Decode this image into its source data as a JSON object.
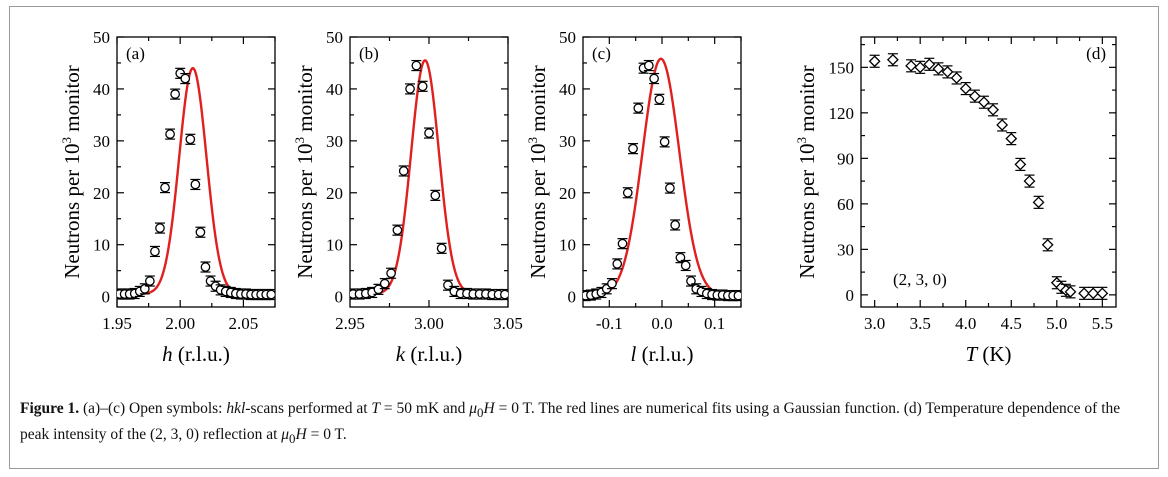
{
  "figure": {
    "ylabel_prefix": "Neutrons per 10",
    "ylabel_sup": "3",
    "ylabel_suffix": " monitor"
  },
  "caption": {
    "figure_label": "Figure 1.",
    "part1": " (a)–(c) Open symbols: ",
    "hkl": "hkl",
    "part2": "-scans performed at ",
    "T_sym": "T",
    "part3": " = 50 mK and ",
    "mu": "μ",
    "sub0": "0",
    "H_sym": "H",
    "part4": " = 0 T. The red lines are numerical fits using a Gaussian function. (d) Temperature dependence of the peak intensity of the (2, 3, 0) reflection at ",
    "mu2": "μ",
    "sub0b": "0",
    "H_sym2": "H",
    "part5": " = 0 T."
  },
  "colors": {
    "fit_line": "#e0201f",
    "marker": "#000000",
    "axis": "#000000"
  },
  "chart_data": [
    {
      "type": "scatter",
      "panel": "(a)",
      "xlabel_var": "h",
      "xlabel_unit": " (r.l.u.)",
      "xlim": [
        1.95,
        2.075
      ],
      "ylim": [
        -2,
        50
      ],
      "xticks": [
        1.95,
        2.0,
        2.05
      ],
      "xtick_labels": [
        "1.95",
        "2.00",
        "2.05"
      ],
      "yticks": [
        0,
        10,
        20,
        30,
        40,
        50
      ],
      "ytick_labels": [
        "0",
        "10",
        "20",
        "30",
        "40",
        "50"
      ],
      "series": [
        {
          "marker": "circle",
          "x": [
            1.952,
            1.956,
            1.96,
            1.964,
            1.968,
            1.972,
            1.976,
            1.98,
            1.984,
            1.988,
            1.992,
            1.996,
            2.0,
            2.004,
            2.008,
            2.012,
            2.016,
            2.02,
            2.024,
            2.028,
            2.032,
            2.036,
            2.04,
            2.044,
            2.048,
            2.052,
            2.056,
            2.06,
            2.064,
            2.068,
            2.072
          ],
          "y": [
            0.5,
            0.5,
            0.5,
            0.6,
            1.0,
            1.5,
            3.0,
            8.7,
            13.2,
            21.0,
            31.3,
            39.0,
            43.0,
            42.0,
            30.3,
            21.6,
            12.4,
            5.7,
            3.0,
            2.0,
            1.3,
            1.0,
            0.8,
            0.6,
            0.5,
            0.5,
            0.4,
            0.4,
            0.4,
            0.4,
            0.4
          ]
        }
      ],
      "fit": {
        "type": "gaussian",
        "amplitude": 43.5,
        "center": 2.01,
        "sigma": 0.0108,
        "offset": 0.5
      }
    },
    {
      "type": "scatter",
      "panel": "(b)",
      "xlabel_var": "k",
      "xlabel_unit": " (r.l.u.)",
      "xlim": [
        2.95,
        3.05
      ],
      "ylim": [
        -2,
        50
      ],
      "xticks": [
        2.95,
        3.0,
        3.05
      ],
      "xtick_labels": [
        "2.95",
        "3.00",
        "3.05"
      ],
      "yticks": [
        0,
        10,
        20,
        30,
        40,
        50
      ],
      "ytick_labels": [
        "0",
        "10",
        "20",
        "30",
        "40",
        "50"
      ],
      "series": [
        {
          "marker": "circle",
          "x": [
            2.952,
            2.956,
            2.96,
            2.964,
            2.968,
            2.972,
            2.976,
            2.98,
            2.984,
            2.988,
            2.992,
            2.996,
            3.0,
            3.004,
            3.008,
            3.012,
            3.016,
            3.02,
            3.024,
            3.028,
            3.032,
            3.036,
            3.04,
            3.044,
            3.048
          ],
          "y": [
            0.5,
            0.5,
            0.6,
            0.8,
            1.4,
            2.5,
            4.5,
            12.8,
            24.2,
            40.0,
            44.5,
            40.5,
            31.5,
            19.5,
            9.3,
            2.2,
            1.0,
            0.6,
            0.6,
            0.5,
            0.5,
            0.5,
            0.4,
            0.4,
            0.4
          ]
        }
      ],
      "fit": {
        "type": "gaussian",
        "amplitude": 45.0,
        "center": 2.9975,
        "sigma": 0.0088,
        "offset": 0.5
      }
    },
    {
      "type": "scatter",
      "panel": "(c)",
      "xlabel_var": "l",
      "xlabel_unit": " (r.l.u.)",
      "xlim": [
        -0.15,
        0.15
      ],
      "ylim": [
        -2,
        50
      ],
      "xticks": [
        -0.1,
        0.0,
        0.1
      ],
      "xtick_labels": [
        "-0.1",
        "0.0",
        "0.1"
      ],
      "yticks": [
        0,
        10,
        20,
        30,
        40,
        50
      ],
      "ytick_labels": [
        "0",
        "10",
        "20",
        "30",
        "40",
        "50"
      ],
      "series": [
        {
          "marker": "circle",
          "x": [
            -0.145,
            -0.135,
            -0.125,
            -0.115,
            -0.105,
            -0.095,
            -0.085,
            -0.075,
            -0.065,
            -0.055,
            -0.045,
            -0.035,
            -0.025,
            -0.015,
            -0.005,
            0.005,
            0.015,
            0.025,
            0.035,
            0.045,
            0.055,
            0.065,
            0.075,
            0.085,
            0.095,
            0.105,
            0.115,
            0.125,
            0.135,
            0.145
          ],
          "y": [
            0.2,
            0.3,
            0.5,
            0.8,
            1.5,
            2.5,
            6.3,
            10.2,
            20.0,
            28.5,
            36.3,
            44.0,
            44.5,
            42.0,
            38.0,
            29.8,
            20.9,
            13.8,
            7.5,
            6.0,
            3.0,
            1.5,
            1.0,
            0.6,
            0.4,
            0.3,
            0.3,
            0.2,
            0.2,
            0.2
          ]
        }
      ],
      "fit": {
        "type": "gaussian",
        "amplitude": 45.5,
        "center": -0.002,
        "sigma": 0.035,
        "offset": 0.3
      }
    },
    {
      "type": "scatter",
      "panel": "(d)",
      "xlabel_var": "T",
      "xlabel_unit": " (K)",
      "annotation": "(2, 3, 0)",
      "xlim": [
        2.85,
        5.65
      ],
      "ylim": [
        -8,
        170
      ],
      "xticks": [
        3.0,
        3.5,
        4.0,
        4.5,
        5.0,
        5.5
      ],
      "xtick_labels": [
        "3.0",
        "3.5",
        "4.0",
        "4.5",
        "5.0",
        "5.5"
      ],
      "yticks": [
        0,
        30,
        60,
        90,
        120,
        150
      ],
      "ytick_labels": [
        "0",
        "30",
        "60",
        "90",
        "120",
        "150"
      ],
      "series": [
        {
          "marker": "diamond",
          "x": [
            3.0,
            3.2,
            3.4,
            3.5,
            3.6,
            3.7,
            3.8,
            3.9,
            4.0,
            4.1,
            4.2,
            4.3,
            4.4,
            4.5,
            4.6,
            4.7,
            4.8,
            4.9,
            5.0,
            5.05,
            5.1,
            5.15,
            5.3,
            5.4,
            5.5
          ],
          "y": [
            154,
            155,
            151,
            150,
            152,
            149,
            147,
            143,
            136,
            131,
            127,
            122,
            112,
            103,
            86,
            75,
            61,
            33,
            8,
            5,
            3,
            2,
            1,
            1,
            1
          ]
        }
      ]
    }
  ]
}
